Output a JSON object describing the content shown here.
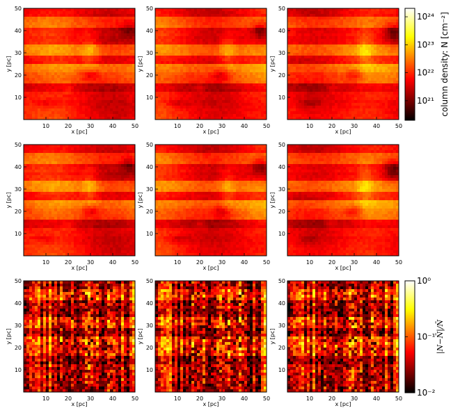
{
  "chart_data": {
    "type": "heatmap",
    "grid": {
      "rows": 3,
      "cols": 3
    },
    "colormap": "hot",
    "panels": [
      {
        "row": 0,
        "col": 0,
        "kind": "density",
        "variant": 0,
        "xlabel": "x [pc]",
        "ylabel": "y [pc]"
      },
      {
        "row": 0,
        "col": 1,
        "kind": "density",
        "variant": 1,
        "xlabel": "x [pc]",
        "ylabel": "y [pc]"
      },
      {
        "row": 0,
        "col": 2,
        "kind": "density",
        "variant": 2,
        "xlabel": "x [pc]",
        "ylabel": "y [pc]"
      },
      {
        "row": 1,
        "col": 0,
        "kind": "density",
        "variant": 0,
        "xlabel": "x [pc]",
        "ylabel": "y [pc]"
      },
      {
        "row": 1,
        "col": 1,
        "kind": "density",
        "variant": 1,
        "xlabel": "x [pc]",
        "ylabel": "y [pc]"
      },
      {
        "row": 1,
        "col": 2,
        "kind": "density",
        "variant": 2,
        "xlabel": "x [pc]",
        "ylabel": "y [pc]"
      },
      {
        "row": 2,
        "col": 0,
        "kind": "residual",
        "variant": 0,
        "xlabel": "x [pc]",
        "ylabel": "y [pc]"
      },
      {
        "row": 2,
        "col": 1,
        "kind": "residual",
        "variant": 1,
        "xlabel": "x [pc]",
        "ylabel": "y [pc]"
      },
      {
        "row": 2,
        "col": 2,
        "kind": "residual",
        "variant": 2,
        "xlabel": "x [pc]",
        "ylabel": "y [pc]"
      }
    ],
    "xlim": [
      0,
      50
    ],
    "ylim": [
      0,
      50
    ],
    "xticks": [
      10,
      20,
      30,
      40,
      50
    ],
    "yticks": [
      10,
      20,
      30,
      40,
      50
    ],
    "colorbars": [
      {
        "label": "column density: N [cm⁻²]",
        "scale": "log",
        "range": [
          2e+20,
          2e+24
        ],
        "tick_labels": [
          "10²¹",
          "10²²",
          "10²³",
          "10²⁴"
        ]
      },
      {
        "label": "|N−N̄|/N̄",
        "scale": "log",
        "range": [
          0.01,
          1
        ],
        "tick_labels": [
          "10⁻²",
          "10⁻¹",
          "10⁰"
        ]
      }
    ]
  }
}
